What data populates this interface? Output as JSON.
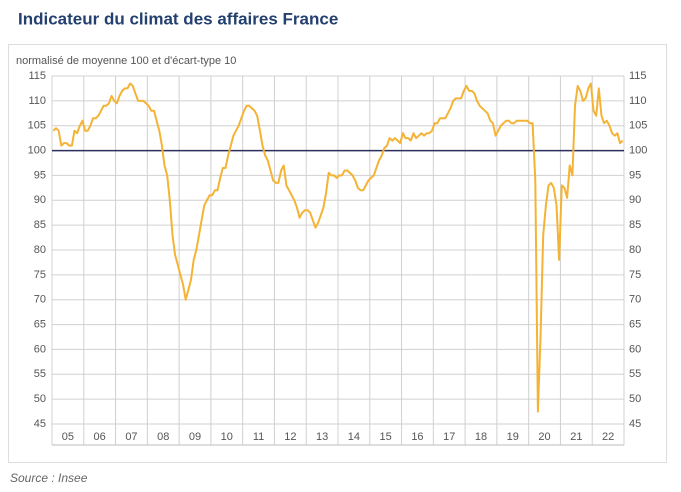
{
  "chart_data": {
    "type": "line",
    "title": "Indicateur du climat des affaires France",
    "subtitle": "normalisé de moyenne 100 et d'écart-type 10",
    "source": "Source : Insee",
    "color": "#f5b335",
    "reference_line": 100,
    "reference_color": "#2b2f5e",
    "grid": true,
    "ylim": [
      45,
      115
    ],
    "yticks": [
      45,
      50,
      55,
      60,
      65,
      70,
      75,
      80,
      85,
      90,
      95,
      100,
      105,
      110,
      115
    ],
    "categories": [
      "05",
      "06",
      "07",
      "08",
      "09",
      "10",
      "11",
      "12",
      "13",
      "14",
      "15",
      "16",
      "17",
      "18",
      "19",
      "20",
      "21",
      "22"
    ],
    "values": [
      [
        104,
        104.5,
        104,
        101,
        101.5,
        101.5,
        101,
        101,
        104,
        103.5,
        105,
        106
      ],
      [
        104,
        104,
        105,
        106.5,
        106.5,
        107,
        108,
        109,
        109,
        109.5,
        111,
        110
      ],
      [
        109.5,
        111,
        112,
        112.5,
        112.5,
        113.5,
        113,
        111.5,
        110,
        110,
        110,
        109.5
      ],
      [
        109,
        108,
        108,
        106,
        104,
        101,
        97,
        95,
        90,
        83,
        79,
        77
      ],
      [
        75,
        73,
        70,
        72,
        74,
        78,
        80,
        83,
        86,
        89,
        90,
        91
      ],
      [
        91,
        92,
        92,
        94.5,
        96.5,
        96.5,
        99,
        101,
        103,
        104,
        105,
        106.5
      ],
      [
        108,
        109,
        109,
        108.5,
        108,
        107,
        104,
        101,
        99,
        98,
        96,
        94
      ],
      [
        93.5,
        93.5,
        96,
        97,
        93,
        92,
        91,
        90,
        88.5,
        86.5,
        87.5,
        88
      ],
      [
        88,
        87.5,
        86,
        84.5,
        85.5,
        87,
        88.5,
        91.5,
        95.5,
        95,
        95,
        94.5
      ],
      [
        95,
        95,
        96,
        96,
        95.5,
        95,
        94,
        92.5,
        92,
        92,
        93,
        94
      ],
      [
        94.5,
        95,
        96.5,
        98,
        99,
        100.5,
        101,
        102.5,
        102,
        102.5,
        102,
        101.5
      ],
      [
        103.5,
        102.5,
        102.5,
        102,
        103.5,
        102.5,
        103,
        103.5,
        103,
        103.5,
        103.5,
        104
      ],
      [
        105.5,
        105.5,
        106.5,
        106.5,
        106.5,
        107.5,
        108.5,
        110,
        110.5,
        110.5,
        110.5,
        112
      ],
      [
        113,
        112,
        112,
        111.5,
        110,
        109,
        108.5,
        108,
        107.5,
        106,
        105.5,
        103
      ],
      [
        104,
        105,
        105.5,
        106,
        106,
        105.5,
        105.5,
        106,
        106,
        106,
        106,
        106
      ],
      [
        105.5,
        105.5,
        94,
        47.5,
        63,
        83,
        89,
        93,
        93.5,
        92.5,
        89,
        78
      ],
      [
        93,
        92.5,
        90.5,
        97,
        95,
        109,
        113,
        112,
        110,
        110.5,
        112.5,
        113.5
      ],
      [
        108,
        107,
        112.5,
        107,
        105.5,
        106,
        105,
        103.5,
        103,
        103.5,
        101.5,
        102
      ]
    ]
  }
}
